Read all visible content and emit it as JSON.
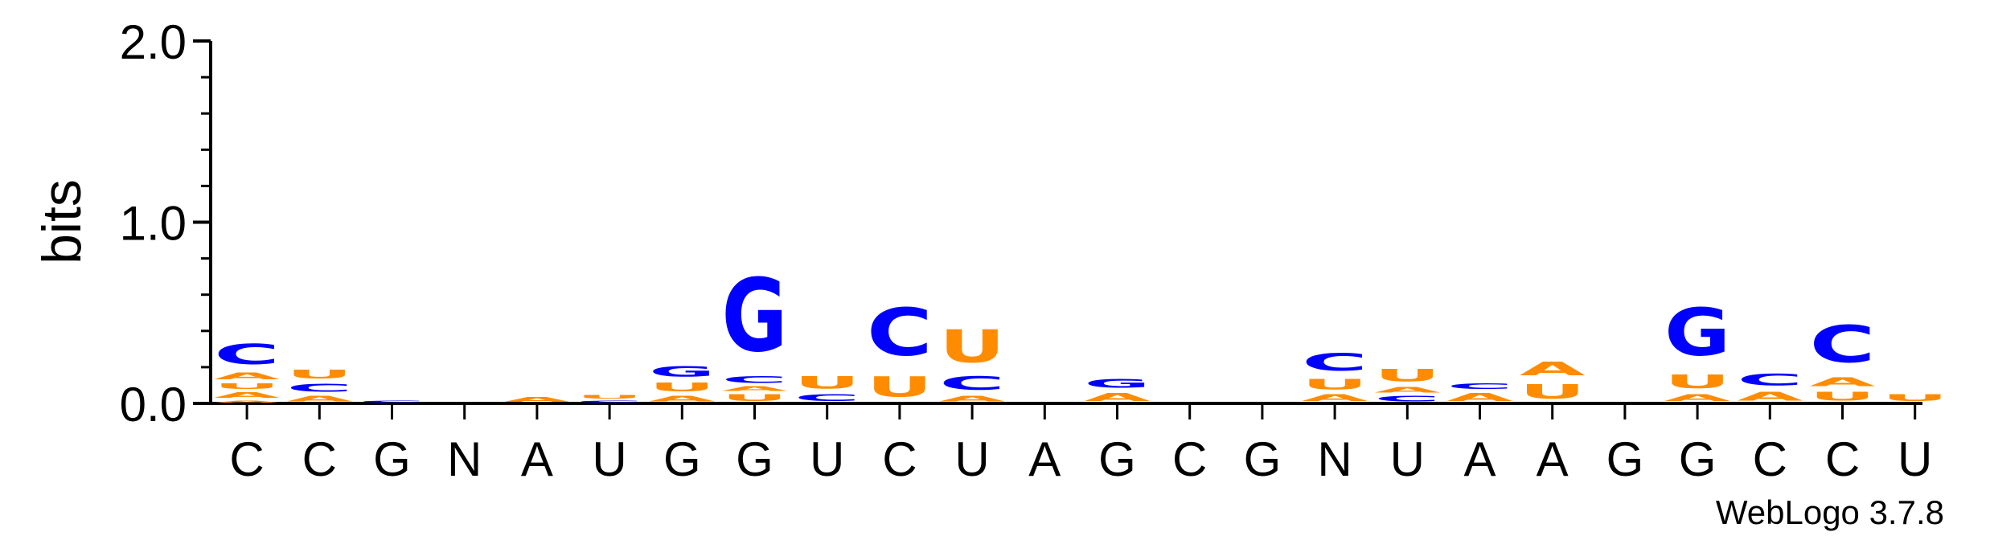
{
  "chart_data": {
    "type": "sequence-logo",
    "ylabel": "bits",
    "ylim": [
      0,
      2.0
    ],
    "yticks": [
      "0.0",
      "1.0",
      "2.0"
    ],
    "footer": "WebLogo 3.7.8",
    "colors": {
      "A": "#ff8c00",
      "U": "#ff8c00",
      "C": "#0000ff",
      "G": "#0000ff"
    },
    "positions": [
      {
        "consensus": "C",
        "stack": [
          {
            "l": "A",
            "h": 0.02
          },
          {
            "l": "A",
            "h": 0.05
          },
          {
            "l": "U",
            "h": 0.05
          },
          {
            "l": "A",
            "h": 0.06
          },
          {
            "l": "C",
            "h": 0.18
          }
        ]
      },
      {
        "consensus": "C",
        "stack": [
          {
            "l": "A",
            "h": 0.05
          },
          {
            "l": "C",
            "h": 0.07
          },
          {
            "l": "U",
            "h": 0.08
          }
        ]
      },
      {
        "consensus": "G",
        "stack": [
          {
            "l": "C",
            "h": 0.02
          }
        ]
      },
      {
        "consensus": "N",
        "stack": []
      },
      {
        "consensus": "A",
        "stack": [
          {
            "l": "A",
            "h": 0.04
          }
        ]
      },
      {
        "consensus": "U",
        "stack": [
          {
            "l": "C",
            "h": 0.02
          },
          {
            "l": "U",
            "h": 0.03
          }
        ]
      },
      {
        "consensus": "G",
        "stack": [
          {
            "l": "A",
            "h": 0.05
          },
          {
            "l": "U",
            "h": 0.08
          },
          {
            "l": "G",
            "h": 0.09
          }
        ]
      },
      {
        "consensus": "G",
        "stack": [
          {
            "l": "U",
            "h": 0.06
          },
          {
            "l": "A",
            "h": 0.04
          },
          {
            "l": "C",
            "h": 0.06
          },
          {
            "l": "G",
            "h": 0.65
          }
        ]
      },
      {
        "consensus": "U",
        "stack": [
          {
            "l": "C",
            "h": 0.06
          },
          {
            "l": "U",
            "h": 0.11
          }
        ]
      },
      {
        "consensus": "C",
        "stack": [
          {
            "l": "U",
            "h": 0.18
          },
          {
            "l": "C",
            "h": 0.42
          }
        ]
      },
      {
        "consensus": "U",
        "stack": [
          {
            "l": "A",
            "h": 0.05
          },
          {
            "l": "C",
            "h": 0.12
          },
          {
            "l": "U",
            "h": 0.29
          }
        ]
      },
      {
        "consensus": "A",
        "stack": []
      },
      {
        "consensus": "G",
        "stack": [
          {
            "l": "A",
            "h": 0.07
          },
          {
            "l": "G",
            "h": 0.08
          }
        ]
      },
      {
        "consensus": "C",
        "stack": []
      },
      {
        "consensus": "G",
        "stack": []
      },
      {
        "consensus": "N",
        "stack": [
          {
            "l": "A",
            "h": 0.06
          },
          {
            "l": "U",
            "h": 0.09
          },
          {
            "l": "C",
            "h": 0.15
          }
        ]
      },
      {
        "consensus": "U",
        "stack": [
          {
            "l": "C",
            "h": 0.05
          },
          {
            "l": "A",
            "h": 0.05
          },
          {
            "l": "U",
            "h": 0.11
          }
        ]
      },
      {
        "consensus": "A",
        "stack": [
          {
            "l": "A",
            "h": 0.07
          },
          {
            "l": "C",
            "h": 0.05
          }
        ]
      },
      {
        "consensus": "A",
        "stack": [
          {
            "l": "U",
            "h": 0.13
          },
          {
            "l": "A",
            "h": 0.12
          }
        ]
      },
      {
        "consensus": "G",
        "stack": []
      },
      {
        "consensus": "G",
        "stack": [
          {
            "l": "A",
            "h": 0.06
          },
          {
            "l": "U",
            "h": 0.12
          },
          {
            "l": "G",
            "h": 0.42
          }
        ]
      },
      {
        "consensus": "C",
        "stack": [
          {
            "l": "A",
            "h": 0.08
          },
          {
            "l": "C",
            "h": 0.1
          }
        ]
      },
      {
        "consensus": "C",
        "stack": [
          {
            "l": "U",
            "h": 0.08
          },
          {
            "l": "A",
            "h": 0.08
          },
          {
            "l": "C",
            "h": 0.33
          }
        ]
      },
      {
        "consensus": "U",
        "stack": [
          {
            "l": "U",
            "h": 0.06
          }
        ]
      }
    ]
  }
}
